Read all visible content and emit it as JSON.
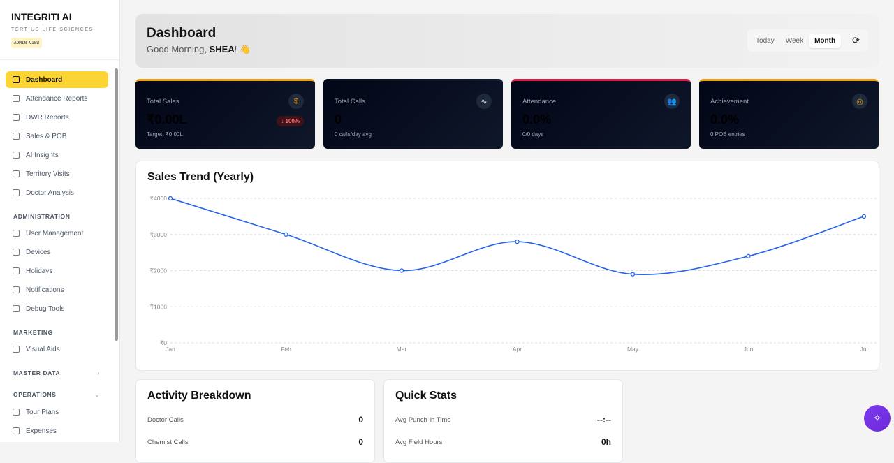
{
  "brand": {
    "title": "INTEGRITI AI",
    "subtitle": "TERTIUS LIFE SCIENCES",
    "badge": "ADMIN VIEW"
  },
  "sidebar": {
    "main": [
      {
        "label": "Dashboard",
        "icon": "grid-icon"
      },
      {
        "label": "Attendance Reports",
        "icon": "calendar-icon"
      },
      {
        "label": "DWR Reports",
        "icon": "file-icon"
      },
      {
        "label": "Sales & POB",
        "icon": "cart-icon"
      },
      {
        "label": "AI Insights",
        "icon": "trending-icon"
      },
      {
        "label": "Territory Visits",
        "icon": "map-icon"
      },
      {
        "label": "Doctor Analysis",
        "icon": "stethoscope-icon"
      }
    ],
    "administration": {
      "title": "ADMINISTRATION",
      "items": [
        {
          "label": "User Management"
        },
        {
          "label": "Devices"
        },
        {
          "label": "Holidays"
        },
        {
          "label": "Notifications"
        },
        {
          "label": "Debug Tools"
        }
      ]
    },
    "marketing": {
      "title": "MARKETING",
      "items": [
        {
          "label": "Visual Aids"
        }
      ]
    },
    "master": {
      "title": "MASTER DATA",
      "chevron": "›"
    },
    "operations": {
      "title": "OPERATIONS",
      "chevron": "⌄",
      "items": [
        {
          "label": "Tour Plans"
        },
        {
          "label": "Expenses"
        }
      ]
    }
  },
  "header": {
    "title": "Dashboard",
    "greeting": "Good Morning, ",
    "user": "SHEA",
    "suffix": "! 👋",
    "periods": [
      "Today",
      "Week",
      "Month"
    ],
    "selected": "Month"
  },
  "kpis": [
    {
      "label": "Total Sales",
      "value": "₹0.00L",
      "footer": "Target: ₹0.00L",
      "trend": "↓ 100%",
      "icon": "$",
      "accent": "#f59e0b",
      "icon_color": "#f59e0b"
    },
    {
      "label": "Total Calls",
      "value": "0",
      "footer": "0 calls/day avg",
      "icon": "∿",
      "accent": "transparent",
      "icon_color": "#e5e7eb"
    },
    {
      "label": "Attendance",
      "value": "0.0%",
      "footer": "0/0 days",
      "icon": "👥",
      "accent": "#e11d48",
      "icon_color": "#e11d48"
    },
    {
      "label": "Achievement",
      "value": "0.0%",
      "footer": "0 POB entries",
      "icon": "◎",
      "accent": "#f59e0b",
      "icon_color": "#f59e0b"
    }
  ],
  "chart_data": {
    "type": "line",
    "title": "Sales Trend (Yearly)",
    "categories": [
      "Jan",
      "Feb",
      "Mar",
      "Apr",
      "May",
      "Jun",
      "Jul"
    ],
    "values": [
      4000,
      3000,
      2000,
      2800,
      1900,
      2400,
      3500
    ],
    "yticks": [
      "₹0",
      "₹1000",
      "₹2000",
      "₹3000",
      "₹4000"
    ],
    "ylim": [
      0,
      4000
    ],
    "grid": true,
    "color": "#2563eb"
  },
  "activity": {
    "title": "Activity Breakdown",
    "rows": [
      {
        "label": "Doctor Calls",
        "value": "0"
      },
      {
        "label": "Chemist Calls",
        "value": "0"
      }
    ]
  },
  "quick": {
    "title": "Quick Stats",
    "rows": [
      {
        "label": "Avg Punch-in Time",
        "value": "--:--"
      },
      {
        "label": "Avg Field Hours",
        "value": "0h"
      }
    ]
  }
}
